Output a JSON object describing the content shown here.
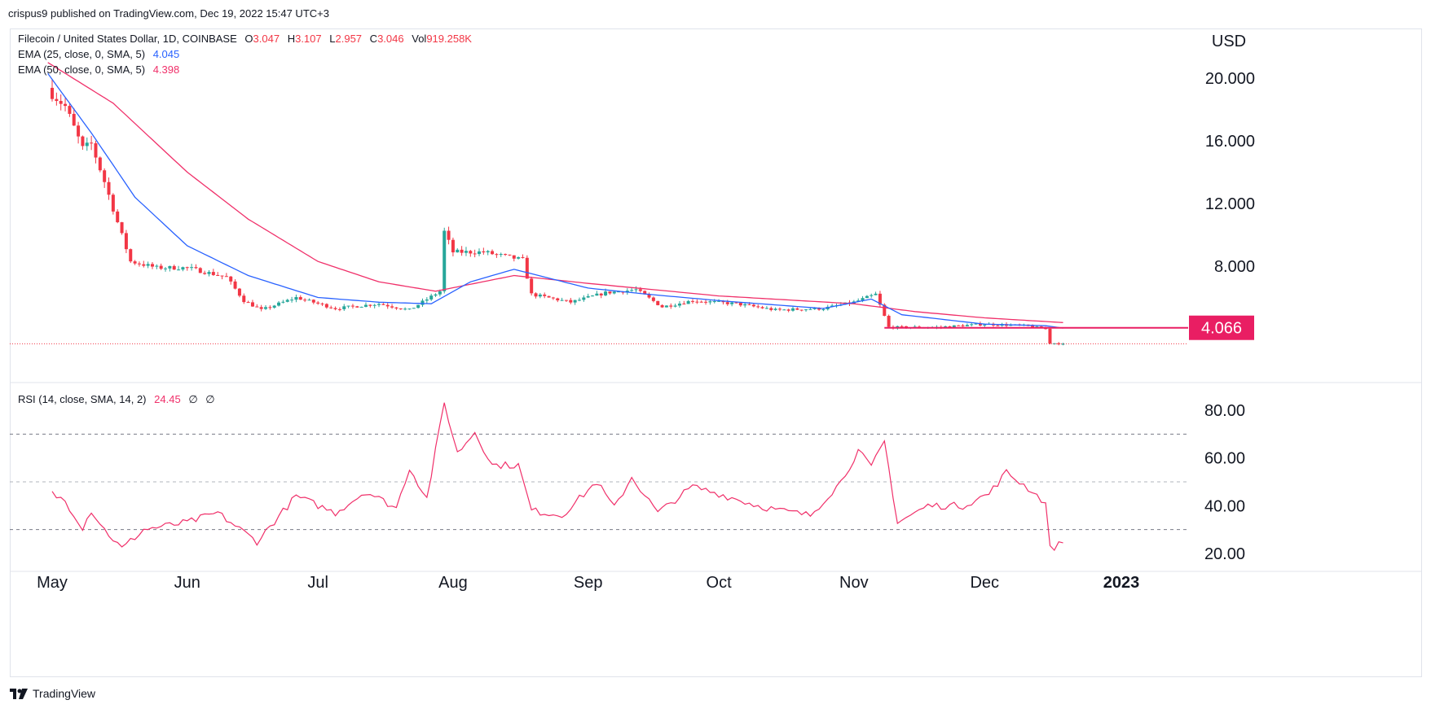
{
  "header": {
    "published": "crispus9 published on TradingView.com, Dec 19, 2022 15:47 UTC+3"
  },
  "footer": {
    "brand": "TradingView",
    "logo": "tradingview-logo-icon"
  },
  "legend": {
    "symbol": "Filecoin / United States Dollar, 1D, COINBASE",
    "o_label": "O",
    "o_value": "3.047",
    "h_label": "H",
    "h_value": "3.107",
    "l_label": "L",
    "l_value": "2.957",
    "c_label": "C",
    "c_value": "3.046",
    "vol_label": "Vol",
    "vol_value": "919.258K",
    "ema25_label": "EMA (25, close, 0, SMA, 5)",
    "ema25_value": "4.045",
    "ema50_label": "EMA (50, close, 0, SMA, 5)",
    "ema50_value": "4.398",
    "rsi_label": "RSI (14, close, SMA, 14, 2)",
    "rsi_value": "24.45",
    "rsi_extra1": "∅",
    "rsi_extra2": "∅"
  },
  "colors": {
    "up": "#26a69a",
    "down": "#f23645",
    "ema25": "#2962ff",
    "ema50": "#f0306a",
    "rsi": "#f0306a",
    "grid": "#e0e3eb",
    "level_line": "#e91e63",
    "text": "#131722"
  },
  "chart_data": [
    {
      "type": "candlestick",
      "currency": "USD",
      "x_tick_labels": [
        "May",
        "Jun",
        "Jul",
        "Aug",
        "Sep",
        "Oct",
        "Nov",
        "Dec",
        "2023"
      ],
      "y_tick_labels": [
        "20.000",
        "16.000",
        "12.000",
        "8.000"
      ],
      "ylim": [
        2.0,
        21.5
      ],
      "price_line": {
        "label": "4.066",
        "value": 4.066
      },
      "last_close": 3.046,
      "keypoints": [
        {
          "date": "2022-05-01",
          "close": 19.0
        },
        {
          "date": "2022-05-04",
          "close": 18.2
        },
        {
          "date": "2022-05-08",
          "close": 15.5
        },
        {
          "date": "2022-05-10",
          "close": 15.8
        },
        {
          "date": "2022-05-13",
          "close": 13.4
        },
        {
          "date": "2022-05-16",
          "close": 10.8
        },
        {
          "date": "2022-05-19",
          "close": 8.3
        },
        {
          "date": "2022-05-25",
          "close": 7.9
        },
        {
          "date": "2022-06-01",
          "close": 7.9
        },
        {
          "date": "2022-06-10",
          "close": 7.3
        },
        {
          "date": "2022-06-14",
          "close": 5.8
        },
        {
          "date": "2022-06-18",
          "close": 5.2
        },
        {
          "date": "2022-06-26",
          "close": 6.0
        },
        {
          "date": "2022-07-05",
          "close": 5.3
        },
        {
          "date": "2022-07-15",
          "close": 5.6
        },
        {
          "date": "2022-07-22",
          "close": 5.2
        },
        {
          "date": "2022-07-29",
          "close": 6.4
        },
        {
          "date": "2022-07-30",
          "close": 10.2
        },
        {
          "date": "2022-08-01",
          "close": 8.9
        },
        {
          "date": "2022-08-08",
          "close": 8.9
        },
        {
          "date": "2022-08-17",
          "close": 8.4
        },
        {
          "date": "2022-08-19",
          "close": 6.2
        },
        {
          "date": "2022-08-28",
          "close": 5.7
        },
        {
          "date": "2022-09-05",
          "close": 6.3
        },
        {
          "date": "2022-09-12",
          "close": 6.5
        },
        {
          "date": "2022-09-18",
          "close": 5.4
        },
        {
          "date": "2022-09-25",
          "close": 5.8
        },
        {
          "date": "2022-10-05",
          "close": 5.6
        },
        {
          "date": "2022-10-14",
          "close": 5.2
        },
        {
          "date": "2022-10-25",
          "close": 5.3
        },
        {
          "date": "2022-11-01",
          "close": 5.7
        },
        {
          "date": "2022-11-06",
          "close": 6.2
        },
        {
          "date": "2022-11-09",
          "close": 4.1
        },
        {
          "date": "2022-11-20",
          "close": 4.1
        },
        {
          "date": "2022-12-01",
          "close": 4.3
        },
        {
          "date": "2022-12-10",
          "close": 4.2
        },
        {
          "date": "2022-12-15",
          "close": 4.0
        },
        {
          "date": "2022-12-16",
          "close": 3.1
        },
        {
          "date": "2022-12-19",
          "close": 3.046
        }
      ],
      "ema25_keypoints": [
        {
          "date": "2022-04-30",
          "value": 20.3
        },
        {
          "date": "2022-05-10",
          "value": 16.5
        },
        {
          "date": "2022-05-20",
          "value": 12.4
        },
        {
          "date": "2022-06-01",
          "value": 9.3
        },
        {
          "date": "2022-06-15",
          "value": 7.4
        },
        {
          "date": "2022-07-01",
          "value": 6.0
        },
        {
          "date": "2022-07-15",
          "value": 5.7
        },
        {
          "date": "2022-07-27",
          "value": 5.6
        },
        {
          "date": "2022-08-05",
          "value": 7.0
        },
        {
          "date": "2022-08-15",
          "value": 7.8
        },
        {
          "date": "2022-09-01",
          "value": 6.6
        },
        {
          "date": "2022-09-15",
          "value": 6.2
        },
        {
          "date": "2022-10-01",
          "value": 5.8
        },
        {
          "date": "2022-10-25",
          "value": 5.3
        },
        {
          "date": "2022-11-05",
          "value": 5.9
        },
        {
          "date": "2022-11-12",
          "value": 4.9
        },
        {
          "date": "2022-12-01",
          "value": 4.3
        },
        {
          "date": "2022-12-15",
          "value": 4.2
        },
        {
          "date": "2022-12-19",
          "value": 4.045
        }
      ],
      "ema50_keypoints": [
        {
          "date": "2022-04-30",
          "value": 21.0
        },
        {
          "date": "2022-05-15",
          "value": 18.4
        },
        {
          "date": "2022-06-01",
          "value": 14.0
        },
        {
          "date": "2022-06-15",
          "value": 11.0
        },
        {
          "date": "2022-07-01",
          "value": 8.3
        },
        {
          "date": "2022-07-15",
          "value": 7.0
        },
        {
          "date": "2022-07-28",
          "value": 6.4
        },
        {
          "date": "2022-08-15",
          "value": 7.4
        },
        {
          "date": "2022-09-01",
          "value": 6.9
        },
        {
          "date": "2022-10-01",
          "value": 6.1
        },
        {
          "date": "2022-11-01",
          "value": 5.6
        },
        {
          "date": "2022-11-15",
          "value": 5.1
        },
        {
          "date": "2022-12-01",
          "value": 4.7
        },
        {
          "date": "2022-12-19",
          "value": 4.398
        }
      ]
    },
    {
      "type": "line",
      "name": "RSI (14, close, SMA, 14, 2)",
      "y_tick_labels": [
        "80.00",
        "60.00",
        "40.00",
        "20.00"
      ],
      "ylim": [
        12,
        90
      ],
      "levels": [
        70,
        50,
        30
      ],
      "keypoints": [
        {
          "date": "2022-05-01",
          "value": 45
        },
        {
          "date": "2022-05-04",
          "value": 42
        },
        {
          "date": "2022-05-08",
          "value": 31
        },
        {
          "date": "2022-05-10",
          "value": 38
        },
        {
          "date": "2022-05-13",
          "value": 30
        },
        {
          "date": "2022-05-17",
          "value": 22
        },
        {
          "date": "2022-05-22",
          "value": 30
        },
        {
          "date": "2022-06-01",
          "value": 33
        },
        {
          "date": "2022-06-08",
          "value": 37
        },
        {
          "date": "2022-06-17",
          "value": 25
        },
        {
          "date": "2022-06-26",
          "value": 44
        },
        {
          "date": "2022-07-05",
          "value": 37
        },
        {
          "date": "2022-07-12",
          "value": 46
        },
        {
          "date": "2022-07-19",
          "value": 39
        },
        {
          "date": "2022-07-22",
          "value": 56
        },
        {
          "date": "2022-07-26",
          "value": 43
        },
        {
          "date": "2022-07-30",
          "value": 83
        },
        {
          "date": "2022-08-02",
          "value": 62
        },
        {
          "date": "2022-08-06",
          "value": 71
        },
        {
          "date": "2022-08-10",
          "value": 57
        },
        {
          "date": "2022-08-16",
          "value": 57
        },
        {
          "date": "2022-08-19",
          "value": 38
        },
        {
          "date": "2022-08-26",
          "value": 36
        },
        {
          "date": "2022-09-03",
          "value": 50
        },
        {
          "date": "2022-09-07",
          "value": 39
        },
        {
          "date": "2022-09-11",
          "value": 52
        },
        {
          "date": "2022-09-17",
          "value": 37
        },
        {
          "date": "2022-09-25",
          "value": 48
        },
        {
          "date": "2022-10-01",
          "value": 45
        },
        {
          "date": "2022-10-10",
          "value": 40
        },
        {
          "date": "2022-10-15",
          "value": 38
        },
        {
          "date": "2022-10-22",
          "value": 36
        },
        {
          "date": "2022-10-29",
          "value": 50
        },
        {
          "date": "2022-11-02",
          "value": 63
        },
        {
          "date": "2022-11-05",
          "value": 56
        },
        {
          "date": "2022-11-08",
          "value": 67
        },
        {
          "date": "2022-11-11",
          "value": 33
        },
        {
          "date": "2022-11-18",
          "value": 40
        },
        {
          "date": "2022-11-26",
          "value": 40
        },
        {
          "date": "2022-12-02",
          "value": 45
        },
        {
          "date": "2022-12-06",
          "value": 54
        },
        {
          "date": "2022-12-12",
          "value": 46
        },
        {
          "date": "2022-12-15",
          "value": 41
        },
        {
          "date": "2022-12-16",
          "value": 22
        },
        {
          "date": "2022-12-19",
          "value": 24.45
        }
      ]
    }
  ]
}
